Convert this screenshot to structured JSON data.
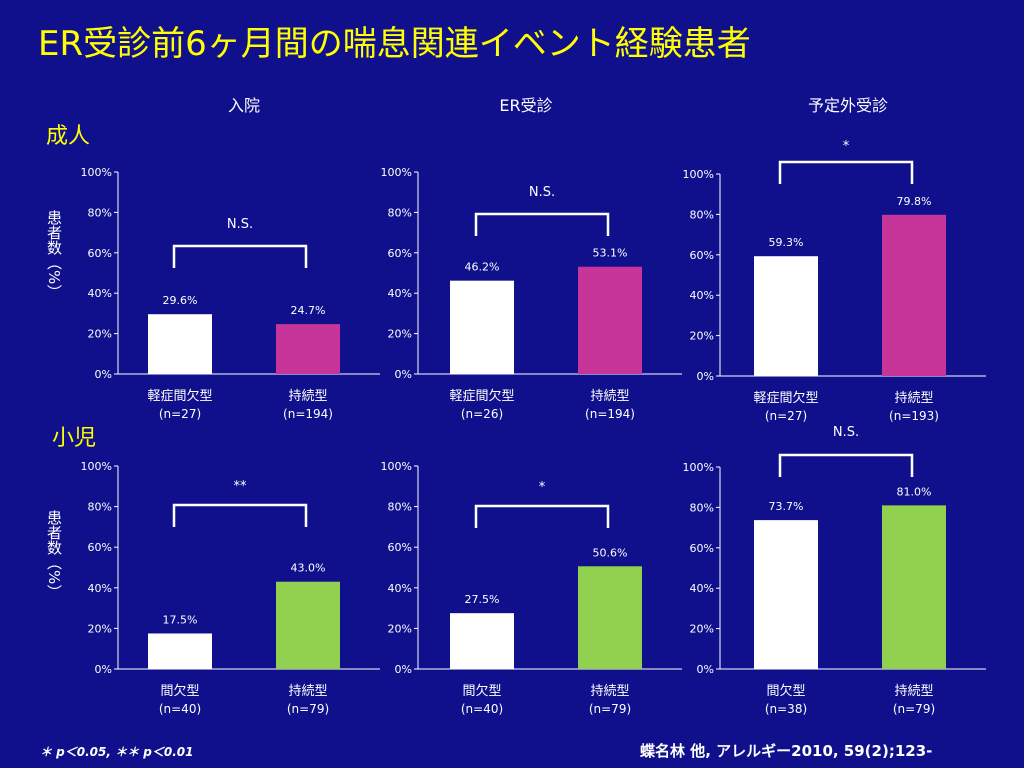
{
  "title": "ER受診前6ヶ月間の喘息関連イベント経験患者",
  "row_labels": {
    "adult": "成人",
    "child": "小児"
  },
  "column_titles": [
    "入院",
    "ER受診",
    "予定外受診"
  ],
  "ylabel": "患者数（%）",
  "footnote": "＊ p＜0.05, ＊＊ p＜0.01",
  "citation": "蝶名林  他, アレルギー2010, 59(2);123-",
  "colors": {
    "white": "#ffffff",
    "magenta": "#c8359a",
    "green": "#92d050",
    "background": "#10108c",
    "title": "#ffff00"
  },
  "chart_data": [
    {
      "type": "bar",
      "group": "成人",
      "panel": "入院",
      "ylim": [
        0,
        100
      ],
      "yticks": [
        "0%",
        "20%",
        "40%",
        "60%",
        "80%",
        "100%"
      ],
      "categories": [
        "軽症間欠型",
        "持続型"
      ],
      "n_labels": [
        "(n=27)",
        "(n=194)"
      ],
      "values": [
        29.6,
        24.7
      ],
      "value_labels": [
        "29.6%",
        "24.7%"
      ],
      "bar_colors": [
        "white",
        "magenta"
      ],
      "significance": "N.S."
    },
    {
      "type": "bar",
      "group": "成人",
      "panel": "ER受診",
      "ylim": [
        0,
        100
      ],
      "yticks": [
        "0%",
        "20%",
        "40%",
        "60%",
        "80%",
        "100%"
      ],
      "categories": [
        "軽症間欠型",
        "持続型"
      ],
      "n_labels": [
        "(n=26)",
        "(n=194)"
      ],
      "values": [
        46.2,
        53.1
      ],
      "value_labels": [
        "46.2%",
        "53.1%"
      ],
      "bar_colors": [
        "white",
        "magenta"
      ],
      "significance": "N.S."
    },
    {
      "type": "bar",
      "group": "成人",
      "panel": "予定外受診",
      "ylim": [
        0,
        100
      ],
      "yticks": [
        "0%",
        "20%",
        "40%",
        "60%",
        "80%",
        "100%"
      ],
      "categories": [
        "軽症間欠型",
        "持続型"
      ],
      "n_labels": [
        "(n=27)",
        "(n=193)"
      ],
      "values": [
        59.3,
        79.8
      ],
      "value_labels": [
        "59.3%",
        "79.8%"
      ],
      "bar_colors": [
        "white",
        "magenta"
      ],
      "significance": "*"
    },
    {
      "type": "bar",
      "group": "小児",
      "panel": "入院",
      "ylim": [
        0,
        100
      ],
      "yticks": [
        "0%",
        "20%",
        "40%",
        "60%",
        "80%",
        "100%"
      ],
      "categories": [
        "間欠型",
        "持続型"
      ],
      "n_labels": [
        "(n=40)",
        "(n=79)"
      ],
      "values": [
        17.5,
        43.0
      ],
      "value_labels": [
        "17.5%",
        "43.0%"
      ],
      "bar_colors": [
        "white",
        "green"
      ],
      "significance": "**"
    },
    {
      "type": "bar",
      "group": "小児",
      "panel": "ER受診",
      "ylim": [
        0,
        100
      ],
      "yticks": [
        "0%",
        "20%",
        "40%",
        "60%",
        "80%",
        "100%"
      ],
      "categories": [
        "間欠型",
        "持続型"
      ],
      "n_labels": [
        "(n=40)",
        "(n=79)"
      ],
      "values": [
        27.5,
        50.6
      ],
      "value_labels": [
        "27.5%",
        "50.6%"
      ],
      "bar_colors": [
        "white",
        "green"
      ],
      "significance": "*"
    },
    {
      "type": "bar",
      "group": "小児",
      "panel": "予定外受診",
      "ylim": [
        0,
        100
      ],
      "yticks": [
        "0%",
        "20%",
        "40%",
        "60%",
        "80%",
        "100%"
      ],
      "categories": [
        "間欠型",
        "持続型"
      ],
      "n_labels": [
        "(n=38)",
        "(n=79)"
      ],
      "values": [
        73.7,
        81.0
      ],
      "value_labels": [
        "73.7%",
        "81.0%"
      ],
      "bar_colors": [
        "white",
        "green"
      ],
      "significance": "N.S."
    }
  ]
}
